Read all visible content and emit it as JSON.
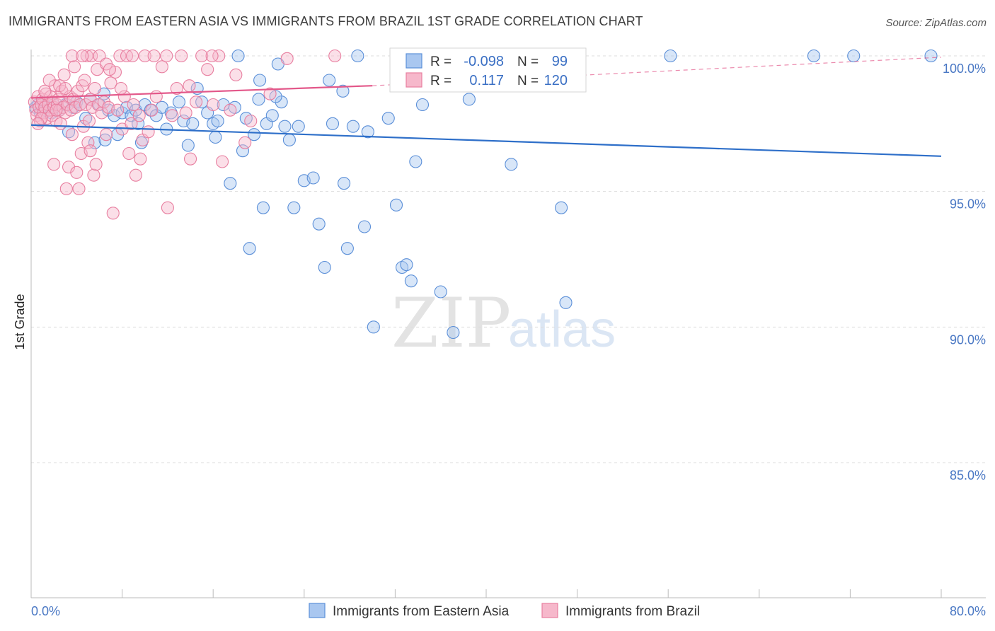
{
  "title": "IMMIGRANTS FROM EASTERN ASIA VS IMMIGRANTS FROM BRAZIL 1ST GRADE CORRELATION CHART",
  "source": "Source: ZipAtlas.com",
  "watermark": {
    "zip": "ZIP",
    "atlas": "atlas"
  },
  "colors": {
    "blue_fill": "#a9c7f0",
    "blue_stroke": "#5b8fd8",
    "blue_line": "#2e6fc9",
    "pink_fill": "#f6b8cb",
    "pink_stroke": "#e87fa0",
    "pink_line": "#e3588a",
    "axis_tick_label": "#4a78c4",
    "grid": "#dddddd"
  },
  "legend": {
    "rows": [
      {
        "r_label": "R =",
        "r_value": "-0.098",
        "n_label": "N =",
        "n_value": "99",
        "series": "blue"
      },
      {
        "r_label": "R =",
        "r_value": "0.117",
        "n_label": "N =",
        "n_value": "120",
        "series": "pink"
      }
    ],
    "bottom": [
      {
        "label": "Immigrants from Eastern Asia",
        "series": "blue"
      },
      {
        "label": "Immigrants from Brazil",
        "series": "pink"
      }
    ]
  },
  "chart_data": {
    "type": "scatter",
    "title": "IMMIGRANTS FROM EASTERN ASIA VS IMMIGRANTS FROM BRAZIL 1ST GRADE CORRELATION CHART",
    "xlabel": "",
    "ylabel": "1st Grade",
    "xlim": [
      0,
      80
    ],
    "ylim": [
      80.5,
      100.8
    ],
    "x_tick_labels": [
      "0.0%",
      "80.0%"
    ],
    "y_ticks": [
      85,
      90,
      95,
      100
    ],
    "y_tick_labels": [
      "85.0%",
      "90.0%",
      "95.0%",
      "100.0%"
    ],
    "grid": true,
    "series": [
      {
        "name": "Immigrants from Eastern Asia",
        "color": "blue",
        "R": -0.098,
        "N": 99,
        "trend": {
          "x": [
            0,
            80
          ],
          "y": [
            97.45,
            96.3
          ]
        },
        "points": [
          [
            0.4,
            98.1
          ],
          [
            0.6,
            98.2
          ],
          [
            0.8,
            97.9
          ],
          [
            1.0,
            98.3
          ],
          [
            1.2,
            98.0
          ],
          [
            1.5,
            98.1
          ],
          [
            1.8,
            97.9
          ],
          [
            2.0,
            98.2
          ],
          [
            2.5,
            98.0
          ],
          [
            3.0,
            98.2
          ],
          [
            3.3,
            97.2
          ],
          [
            3.7,
            98.1
          ],
          [
            4.0,
            98.3
          ],
          [
            4.3,
            98.2
          ],
          [
            4.8,
            97.7
          ],
          [
            5.2,
            98.4
          ],
          [
            5.6,
            96.8
          ],
          [
            6.0,
            98.2
          ],
          [
            6.4,
            98.6
          ],
          [
            6.8,
            98.0
          ],
          [
            7.3,
            97.8
          ],
          [
            7.6,
            97.1
          ],
          [
            8.0,
            97.9
          ],
          [
            8.4,
            98.1
          ],
          [
            8.8,
            97.8
          ],
          [
            9.2,
            98.0
          ],
          [
            9.7,
            96.8
          ],
          [
            10.0,
            98.2
          ],
          [
            10.5,
            98.0
          ],
          [
            11.0,
            97.8
          ],
          [
            11.5,
            98.1
          ],
          [
            11.9,
            97.3
          ],
          [
            12.3,
            97.9
          ],
          [
            13.0,
            98.3
          ],
          [
            13.4,
            97.6
          ],
          [
            13.8,
            96.7
          ],
          [
            14.2,
            97.5
          ],
          [
            14.6,
            98.8
          ],
          [
            15.0,
            98.3
          ],
          [
            15.5,
            97.9
          ],
          [
            16.0,
            97.5
          ],
          [
            16.4,
            97.6
          ],
          [
            16.9,
            98.2
          ],
          [
            17.5,
            95.3
          ],
          [
            17.9,
            98.1
          ],
          [
            18.6,
            96.5
          ],
          [
            18.9,
            97.7
          ],
          [
            19.2,
            92.9
          ],
          [
            19.6,
            97.1
          ],
          [
            20.0,
            98.4
          ],
          [
            20.4,
            94.4
          ],
          [
            20.7,
            97.5
          ],
          [
            21.2,
            97.8
          ],
          [
            21.7,
            99.7
          ],
          [
            22.0,
            98.3
          ],
          [
            22.3,
            97.4
          ],
          [
            22.7,
            96.9
          ],
          [
            23.1,
            94.4
          ],
          [
            23.5,
            97.4
          ],
          [
            24.0,
            95.4
          ],
          [
            24.8,
            95.5
          ],
          [
            25.3,
            93.8
          ],
          [
            25.8,
            92.2
          ],
          [
            26.2,
            99.1
          ],
          [
            26.5,
            97.5
          ],
          [
            27.5,
            95.3
          ],
          [
            27.8,
            92.9
          ],
          [
            28.3,
            97.4
          ],
          [
            29.3,
            93.7
          ],
          [
            29.6,
            97.2
          ],
          [
            30.1,
            90.0
          ],
          [
            31.4,
            97.7
          ],
          [
            32.1,
            94.5
          ],
          [
            32.6,
            92.2
          ],
          [
            33.0,
            92.3
          ],
          [
            33.4,
            91.7
          ],
          [
            33.8,
            96.1
          ],
          [
            36.0,
            91.3
          ],
          [
            37.1,
            89.8
          ],
          [
            38.0,
            99.5
          ],
          [
            38.5,
            98.4
          ],
          [
            42.2,
            96.0
          ],
          [
            43.0,
            99.3
          ],
          [
            46.6,
            94.4
          ],
          [
            47.0,
            90.9
          ],
          [
            56.2,
            100.0
          ],
          [
            68.8,
            100.0
          ],
          [
            72.3,
            100.0
          ],
          [
            79.1,
            100.0
          ],
          [
            18.2,
            100.0
          ],
          [
            28.7,
            100.0
          ],
          [
            41.0,
            100.0
          ],
          [
            20.1,
            99.1
          ],
          [
            27.4,
            98.7
          ],
          [
            34.4,
            98.2
          ],
          [
            21.5,
            98.5
          ],
          [
            9.4,
            97.5
          ],
          [
            6.5,
            96.9
          ],
          [
            16.2,
            97.0
          ]
        ]
      },
      {
        "name": "Immigrants from Brazil",
        "color": "pink",
        "R": 0.117,
        "N": 120,
        "trend": {
          "x": [
            0,
            30
          ],
          "y": [
            98.45,
            98.9
          ]
        },
        "trend_dashed": {
          "x": [
            30,
            80
          ],
          "y": [
            98.9,
            99.95
          ]
        },
        "points": [
          [
            0.3,
            98.3
          ],
          [
            0.4,
            98.0
          ],
          [
            0.5,
            97.8
          ],
          [
            0.6,
            98.5
          ],
          [
            0.7,
            98.1
          ],
          [
            0.8,
            97.6
          ],
          [
            0.9,
            98.2
          ],
          [
            1.0,
            98.4
          ],
          [
            1.1,
            97.9
          ],
          [
            1.2,
            98.1
          ],
          [
            1.3,
            98.6
          ],
          [
            1.4,
            97.7
          ],
          [
            1.5,
            98.2
          ],
          [
            1.6,
            98.0
          ],
          [
            1.7,
            98.5
          ],
          [
            1.8,
            97.8
          ],
          [
            1.9,
            98.3
          ],
          [
            2.0,
            98.1
          ],
          [
            2.1,
            98.9
          ],
          [
            2.2,
            97.6
          ],
          [
            2.3,
            98.2
          ],
          [
            2.4,
            98.4
          ],
          [
            2.5,
            98.0
          ],
          [
            2.6,
            97.5
          ],
          [
            2.7,
            98.7
          ],
          [
            2.8,
            98.1
          ],
          [
            2.9,
            99.3
          ],
          [
            3.0,
            97.9
          ],
          [
            3.1,
            95.1
          ],
          [
            3.2,
            98.2
          ],
          [
            3.3,
            95.9
          ],
          [
            3.4,
            98.5
          ],
          [
            3.5,
            98.0
          ],
          [
            3.6,
            97.1
          ],
          [
            3.7,
            98.4
          ],
          [
            3.8,
            99.6
          ],
          [
            3.9,
            98.1
          ],
          [
            4.0,
            95.7
          ],
          [
            4.1,
            98.7
          ],
          [
            4.2,
            95.1
          ],
          [
            4.3,
            98.2
          ],
          [
            4.4,
            96.4
          ],
          [
            4.5,
            98.9
          ],
          [
            4.6,
            97.4
          ],
          [
            4.7,
            99.1
          ],
          [
            4.8,
            98.2
          ],
          [
            4.9,
            100.0
          ],
          [
            5.0,
            96.8
          ],
          [
            5.1,
            97.6
          ],
          [
            5.2,
            98.4
          ],
          [
            5.3,
            100.0
          ],
          [
            5.4,
            98.1
          ],
          [
            5.5,
            95.6
          ],
          [
            5.6,
            98.8
          ],
          [
            5.7,
            96.0
          ],
          [
            5.8,
            99.5
          ],
          [
            5.9,
            98.2
          ],
          [
            6.0,
            100.0
          ],
          [
            6.2,
            97.9
          ],
          [
            6.4,
            98.3
          ],
          [
            6.6,
            99.7
          ],
          [
            6.8,
            98.1
          ],
          [
            7.0,
            99.0
          ],
          [
            7.2,
            94.2
          ],
          [
            7.4,
            99.4
          ],
          [
            7.6,
            98.0
          ],
          [
            7.8,
            100.0
          ],
          [
            8.0,
            97.3
          ],
          [
            8.2,
            98.5
          ],
          [
            8.4,
            100.0
          ],
          [
            8.6,
            96.4
          ],
          [
            8.8,
            97.5
          ],
          [
            9.0,
            98.2
          ],
          [
            9.2,
            95.6
          ],
          [
            9.5,
            97.8
          ],
          [
            9.8,
            96.9
          ],
          [
            10.0,
            100.0
          ],
          [
            10.3,
            97.2
          ],
          [
            10.6,
            98.0
          ],
          [
            11.0,
            98.5
          ],
          [
            11.5,
            99.6
          ],
          [
            12.0,
            94.4
          ],
          [
            12.4,
            97.8
          ],
          [
            12.8,
            98.8
          ],
          [
            13.2,
            100.0
          ],
          [
            13.6,
            97.9
          ],
          [
            14.0,
            96.2
          ],
          [
            14.5,
            98.3
          ],
          [
            15.0,
            100.0
          ],
          [
            15.5,
            99.5
          ],
          [
            16.0,
            98.2
          ],
          [
            16.5,
            100.0
          ],
          [
            16.8,
            96.1
          ],
          [
            17.5,
            98.0
          ],
          [
            18.0,
            99.3
          ],
          [
            18.8,
            96.8
          ],
          [
            19.3,
            97.6
          ],
          [
            21.0,
            98.6
          ],
          [
            22.5,
            99.9
          ],
          [
            26.7,
            100.0
          ],
          [
            2.5,
            98.9
          ],
          [
            3.6,
            100.0
          ],
          [
            6.6,
            97.1
          ],
          [
            0.9,
            97.7
          ],
          [
            1.6,
            99.1
          ],
          [
            2.0,
            96.0
          ],
          [
            7.9,
            98.8
          ],
          [
            11.9,
            100.0
          ],
          [
            4.5,
            100.0
          ],
          [
            9.6,
            96.2
          ],
          [
            5.2,
            96.5
          ],
          [
            13.9,
            98.9
          ],
          [
            1.2,
            98.7
          ],
          [
            0.6,
            97.5
          ],
          [
            3.0,
            98.8
          ],
          [
            6.9,
            99.5
          ],
          [
            8.9,
            100.0
          ],
          [
            10.8,
            100.0
          ],
          [
            15.9,
            100.0
          ],
          [
            2.2,
            98.0
          ]
        ]
      }
    ]
  }
}
